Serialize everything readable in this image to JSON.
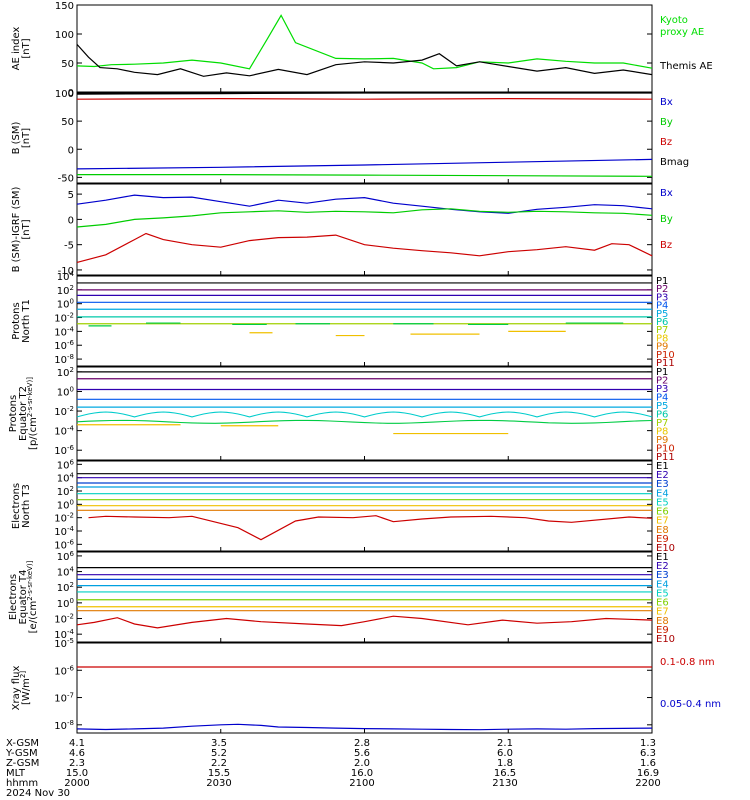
{
  "chart_data": [
    {
      "type": "line",
      "ylabel": [
        "AE index",
        "[nT]"
      ],
      "yticks": [
        "150",
        "100",
        "50",
        "0"
      ],
      "ylim": [
        0,
        150
      ],
      "series": [
        {
          "name": "Kyoto proxy AE",
          "color": "#00dd00",
          "x": [
            0,
            0.03,
            0.06,
            0.1,
            0.15,
            0.2,
            0.25,
            0.3,
            0.33,
            0.355,
            0.38,
            0.45,
            0.5,
            0.55,
            0.6,
            0.62,
            0.66,
            0.7,
            0.75,
            0.8,
            0.85,
            0.9,
            0.95,
            1.0
          ],
          "y": [
            45,
            44,
            47,
            48,
            50,
            55,
            50,
            40,
            90,
            132,
            85,
            58,
            57,
            58,
            50,
            40,
            42,
            52,
            50,
            57,
            53,
            50,
            50,
            41
          ]
        },
        {
          "name": "Themis AE",
          "color": "#000000",
          "x": [
            0,
            0.02,
            0.04,
            0.07,
            0.1,
            0.14,
            0.18,
            0.22,
            0.26,
            0.3,
            0.35,
            0.4,
            0.45,
            0.5,
            0.55,
            0.6,
            0.63,
            0.66,
            0.7,
            0.75,
            0.8,
            0.85,
            0.9,
            0.95,
            1.0
          ],
          "y": [
            82,
            60,
            42,
            40,
            34,
            30,
            40,
            27,
            33,
            28,
            39,
            30,
            47,
            52,
            50,
            55,
            66,
            45,
            52,
            44,
            36,
            42,
            32,
            38,
            30
          ]
        }
      ]
    },
    {
      "type": "line",
      "ylabel": [
        "B (SM)",
        "[nT]"
      ],
      "yticks": [
        "100",
        "50",
        "0",
        "-50"
      ],
      "ylim": [
        -60,
        100
      ],
      "series": [
        {
          "name": "Bx",
          "color": "#0000cc",
          "x": [
            0,
            0.25,
            0.5,
            0.75,
            1.0
          ],
          "y": [
            -35,
            -32,
            -28,
            -23,
            -18
          ]
        },
        {
          "name": "By",
          "color": "#00cc00",
          "x": [
            0,
            0.25,
            0.5,
            0.75,
            1.0
          ],
          "y": [
            -45,
            -45,
            -46,
            -47,
            -48
          ]
        },
        {
          "name": "Bz",
          "color": "#cc0000",
          "x": [
            0,
            0.25,
            0.5,
            0.75,
            1.0
          ],
          "y": [
            89,
            90,
            89,
            90,
            89
          ]
        },
        {
          "name": "Bmag",
          "color": "#000000",
          "x": [
            0,
            0.25,
            0.5,
            0.75,
            1.0
          ],
          "y": [
            98,
            99,
            100,
            100,
            100
          ]
        }
      ]
    },
    {
      "type": "line",
      "ylabel": [
        "B (SM)-IGRF (SM)",
        "[nT]"
      ],
      "yticks": [
        "5",
        "0",
        "-5",
        "-10"
      ],
      "ylim": [
        -11,
        7
      ],
      "series": [
        {
          "name": "Bx",
          "color": "#0000cc",
          "x": [
            0,
            0.05,
            0.1,
            0.15,
            0.2,
            0.25,
            0.3,
            0.35,
            0.4,
            0.45,
            0.5,
            0.55,
            0.6,
            0.65,
            0.7,
            0.75,
            0.8,
            0.85,
            0.9,
            0.95,
            1.0
          ],
          "y": [
            3,
            3.8,
            4.8,
            4.3,
            4.4,
            3.5,
            2.6,
            3.8,
            3.2,
            4.0,
            4.3,
            3.2,
            2.6,
            2.0,
            1.5,
            1.2,
            2.0,
            2.4,
            2.9,
            2.7,
            2.1
          ]
        },
        {
          "name": "By",
          "color": "#00cc00",
          "x": [
            0,
            0.05,
            0.1,
            0.15,
            0.2,
            0.25,
            0.3,
            0.35,
            0.4,
            0.45,
            0.5,
            0.55,
            0.6,
            0.65,
            0.7,
            0.75,
            0.8,
            0.85,
            0.9,
            0.95,
            1.0
          ],
          "y": [
            -1.5,
            -1.0,
            0.0,
            0.3,
            0.7,
            1.3,
            1.5,
            1.7,
            1.4,
            1.6,
            1.5,
            1.3,
            1.9,
            2.1,
            1.6,
            1.4,
            1.6,
            1.5,
            1.3,
            1.2,
            0.8
          ]
        },
        {
          "name": "Bz",
          "color": "#cc0000",
          "x": [
            0,
            0.05,
            0.1,
            0.12,
            0.15,
            0.2,
            0.25,
            0.3,
            0.35,
            0.4,
            0.45,
            0.5,
            0.55,
            0.6,
            0.65,
            0.7,
            0.75,
            0.8,
            0.85,
            0.9,
            0.93,
            0.96,
            1.0
          ],
          "y": [
            -8.5,
            -7.0,
            -4.0,
            -2.8,
            -4.0,
            -5.0,
            -5.5,
            -4.2,
            -3.6,
            -3.5,
            -3.1,
            -5.0,
            -5.7,
            -6.2,
            -6.6,
            -7.2,
            -6.4,
            -6.0,
            -5.4,
            -6.1,
            -4.8,
            -5.0,
            -7.2
          ]
        }
      ]
    },
    {
      "type": "line",
      "ylabel": [
        "Protons",
        "North T1"
      ],
      "yticks": [
        "10^4",
        "10^2",
        "10^0",
        "10^-2",
        "10^-4",
        "10^-6",
        "10^-8"
      ],
      "ylim": [
        -9,
        4
      ],
      "legend": [
        {
          "name": "P1",
          "color": "#000000"
        },
        {
          "name": "P2",
          "color": "#6a006a"
        },
        {
          "name": "P3",
          "color": "#3000b0"
        },
        {
          "name": "P4",
          "color": "#0055ee"
        },
        {
          "name": "P5",
          "color": "#00a8e0"
        },
        {
          "name": "P6",
          "color": "#00c8a8"
        },
        {
          "name": "P7",
          "color": "#a0d000"
        },
        {
          "name": "P8",
          "color": "#e8c800"
        },
        {
          "name": "P9",
          "color": "#e07800"
        },
        {
          "name": "P10",
          "color": "#cc2200"
        },
        {
          "name": "P11",
          "color": "#aa0000"
        }
      ],
      "levels": [
        3.0,
        2.0,
        1.2,
        0.2,
        -0.8,
        -1.9,
        -2.9
      ],
      "dashes": [
        {
          "color": "#00cc44",
          "segs": [
            [
              0.02,
              0.06,
              -3.2
            ],
            [
              0.12,
              0.18,
              -2.8
            ],
            [
              0.27,
              0.33,
              -3.0
            ],
            [
              0.38,
              0.44,
              -2.9
            ],
            [
              0.55,
              0.62,
              -2.9
            ],
            [
              0.68,
              0.75,
              -3.0
            ],
            [
              0.85,
              0.95,
              -2.8
            ]
          ]
        },
        {
          "color": "#f0c000",
          "segs": [
            [
              0.3,
              0.34,
              -4.2
            ],
            [
              0.45,
              0.5,
              -4.6
            ],
            [
              0.58,
              0.7,
              -4.4
            ],
            [
              0.75,
              0.85,
              -4.0
            ]
          ]
        }
      ]
    },
    {
      "type": "line",
      "ylabel": [
        "Protons",
        "Equator T2",
        "[p/(cm^2-s-sr-keV)]"
      ],
      "yticks": [
        "10^2",
        "10^0",
        "10^-2",
        "10^-4",
        "10^-6"
      ],
      "ylim": [
        -7,
        2.5
      ],
      "legend": [
        {
          "name": "P1",
          "color": "#000000"
        },
        {
          "name": "P2",
          "color": "#6a006a"
        },
        {
          "name": "P3",
          "color": "#3000b0"
        },
        {
          "name": "P4",
          "color": "#0055ee"
        },
        {
          "name": "P5",
          "color": "#00a8e0"
        },
        {
          "name": "P6",
          "color": "#00c8a8"
        },
        {
          "name": "P7",
          "color": "#a0d000"
        },
        {
          "name": "P8",
          "color": "#e8c800"
        },
        {
          "name": "P9",
          "color": "#e07800"
        },
        {
          "name": "P10",
          "color": "#cc2200"
        },
        {
          "name": "P11",
          "color": "#aa0000"
        }
      ],
      "levels": [
        2.0,
        1.3,
        0.2,
        -0.8,
        -1.6
      ],
      "wave": {
        "color": "#00cccc",
        "base": -2.6,
        "amp": 0.5,
        "period": 0.1
      },
      "wave2": {
        "color": "#00cc44",
        "base": -3.1,
        "amp": 0.15
      },
      "dashes": [
        {
          "color": "#f0c000",
          "segs": [
            [
              0.0,
              0.18,
              -3.4
            ],
            [
              0.25,
              0.35,
              -3.5
            ],
            [
              0.55,
              0.75,
              -4.3
            ]
          ]
        }
      ]
    },
    {
      "type": "line",
      "ylabel": [
        "Electrons",
        "North T3"
      ],
      "yticks": [
        "10^6",
        "10^4",
        "10^2",
        "10^0",
        "10^-2",
        "10^-4",
        "10^-6"
      ],
      "ylim": [
        -7,
        6.5
      ],
      "legend": [
        {
          "name": "E1",
          "color": "#000000"
        },
        {
          "name": "E2",
          "color": "#3000b0"
        },
        {
          "name": "E3",
          "color": "#0040d0"
        },
        {
          "name": "E4",
          "color": "#00a0e0"
        },
        {
          "name": "E5",
          "color": "#00d0c0"
        },
        {
          "name": "E6",
          "color": "#80d000"
        },
        {
          "name": "E7",
          "color": "#f0c000"
        },
        {
          "name": "E8",
          "color": "#e07800"
        },
        {
          "name": "E9",
          "color": "#cc2200"
        },
        {
          "name": "E10",
          "color": "#aa0000"
        }
      ],
      "levels": [
        4.6,
        4.0,
        3.2,
        2.6,
        1.6,
        0.7,
        -0.2,
        -0.9
      ],
      "red": {
        "color": "#cc0000",
        "x": [
          0.02,
          0.05,
          0.1,
          0.16,
          0.2,
          0.28,
          0.32,
          0.38,
          0.42,
          0.48,
          0.52,
          0.55,
          0.6,
          0.65,
          0.72,
          0.78,
          0.82,
          0.86,
          0.96,
          1.0
        ],
        "y": [
          -2.0,
          -1.8,
          -1.9,
          -2.0,
          -1.8,
          -3.5,
          -5.3,
          -2.5,
          -1.9,
          -2.0,
          -1.7,
          -2.6,
          -2.2,
          -1.9,
          -1.8,
          -2.0,
          -2.5,
          -2.7,
          -1.9,
          -2.1
        ]
      }
    },
    {
      "type": "line",
      "ylabel": [
        "Electrons",
        "Equator T4",
        "[e/(cm^2-s-sr-keV)]"
      ],
      "yticks": [
        "10^6",
        "10^4",
        "10^2",
        "10^0",
        "10^-2",
        "10^-4"
      ],
      "ylim": [
        -5,
        6.5
      ],
      "legend": [
        {
          "name": "E1",
          "color": "#000000"
        },
        {
          "name": "E2",
          "color": "#3000b0"
        },
        {
          "name": "E3",
          "color": "#0040d0"
        },
        {
          "name": "E4",
          "color": "#00a0e0"
        },
        {
          "name": "E5",
          "color": "#00d0c0"
        },
        {
          "name": "E6",
          "color": "#80d000"
        },
        {
          "name": "E7",
          "color": "#f0c000"
        },
        {
          "name": "E8",
          "color": "#e07800"
        },
        {
          "name": "E9",
          "color": "#cc2200"
        },
        {
          "name": "E10",
          "color": "#aa0000"
        }
      ],
      "levels": [
        4.5,
        3.6,
        3.0,
        2.2,
        1.4,
        0.4,
        -0.5,
        -1.0
      ],
      "red": {
        "color": "#cc0000",
        "x": [
          0.0,
          0.03,
          0.07,
          0.1,
          0.14,
          0.2,
          0.26,
          0.32,
          0.4,
          0.46,
          0.5,
          0.55,
          0.6,
          0.68,
          0.74,
          0.8,
          0.86,
          0.92,
          1.0
        ],
        "y": [
          -2.8,
          -2.5,
          -1.9,
          -2.7,
          -3.2,
          -2.5,
          -2.0,
          -2.4,
          -2.7,
          -2.9,
          -2.4,
          -1.7,
          -2.0,
          -2.8,
          -2.2,
          -2.6,
          -2.4,
          -2.0,
          -2.2
        ]
      }
    },
    {
      "type": "line",
      "ylabel": [
        "Xray flux",
        "[W/m^2]"
      ],
      "yticks": [
        "10^-5",
        "10^-6",
        "10^-7",
        "10^-8"
      ],
      "ylim": [
        -8.3,
        -5
      ],
      "series": [
        {
          "name": "0.1-0.8 nm",
          "color": "#cc0000",
          "x": [
            0,
            0.25,
            0.5,
            0.75,
            1.0
          ],
          "y": [
            -5.88,
            -5.88,
            -5.88,
            -5.88,
            -5.88
          ]
        },
        {
          "name": "0.05-0.4 nm",
          "color": "#0000cc",
          "x": [
            0,
            0.05,
            0.1,
            0.15,
            0.2,
            0.25,
            0.28,
            0.32,
            0.35,
            0.4,
            0.45,
            0.5,
            0.55,
            0.6,
            0.65,
            0.7,
            0.75,
            0.8,
            0.85,
            0.9,
            0.95,
            1.0
          ],
          "y": [
            -8.15,
            -8.17,
            -8.15,
            -8.12,
            -8.05,
            -8.0,
            -7.98,
            -8.02,
            -8.08,
            -8.1,
            -8.12,
            -8.14,
            -8.15,
            -8.16,
            -8.17,
            -8.18,
            -8.16,
            -8.15,
            -8.16,
            -8.14,
            -8.13,
            -8.12
          ]
        }
      ]
    }
  ],
  "footer": {
    "rows": [
      {
        "label": "X-GSM",
        "values": [
          "4.1",
          "3.5",
          "2.8",
          "2.1",
          "1.3"
        ]
      },
      {
        "label": "Y-GSM",
        "values": [
          "4.6",
          "5.2",
          "5.6",
          "6.0",
          "6.3"
        ]
      },
      {
        "label": "Z-GSM",
        "values": [
          "2.3",
          "2.2",
          "2.0",
          "1.8",
          "1.6"
        ]
      },
      {
        "label": "MLT",
        "values": [
          "15.0",
          "15.5",
          "16.0",
          "16.5",
          "16.9"
        ]
      },
      {
        "label": "hhmm",
        "values": [
          "2000",
          "2030",
          "2100",
          "2130",
          "2200"
        ]
      }
    ],
    "date": "2024 Nov 30"
  }
}
